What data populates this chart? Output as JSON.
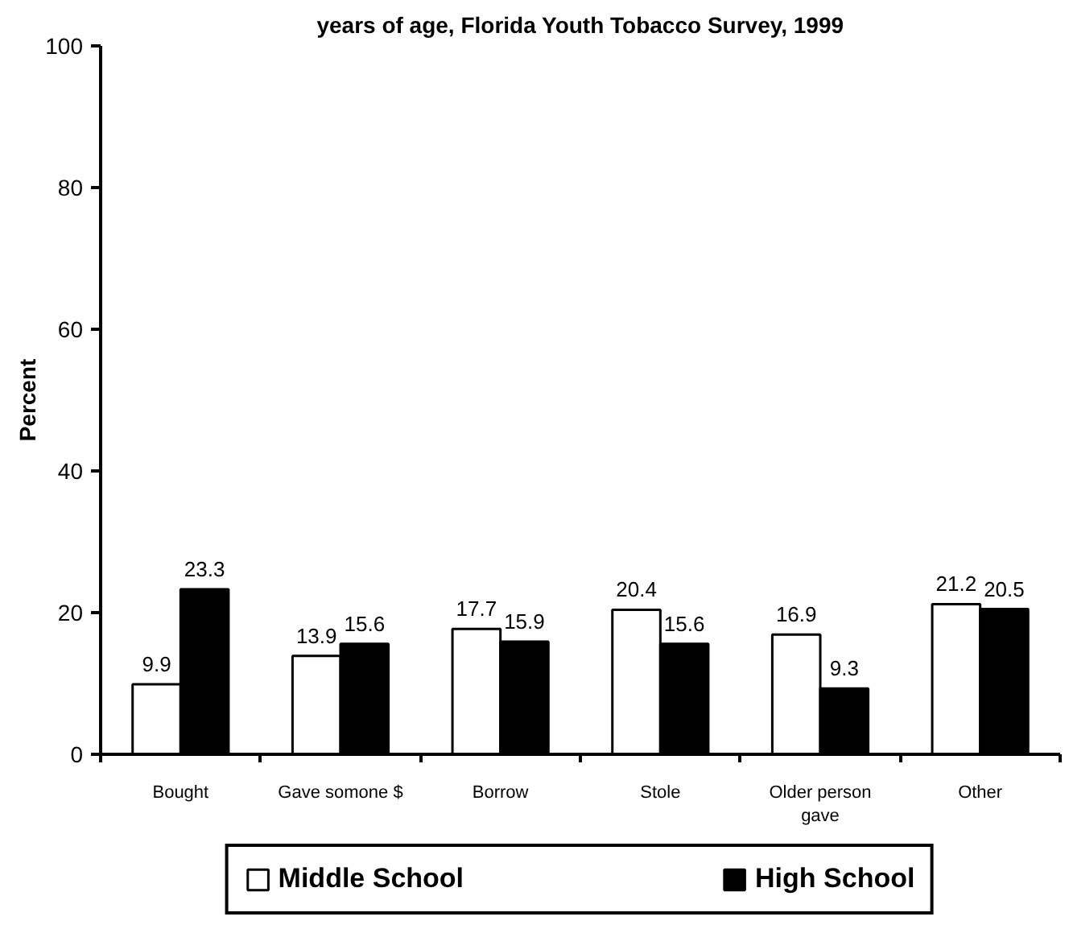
{
  "chart_data": {
    "type": "bar",
    "title": "years of age, Florida Youth Tobacco Survey, 1999",
    "ylabel": "Percent",
    "categories": [
      "Bought",
      "Gave somone $",
      "Borrow",
      "Stole",
      "Older person gave",
      "Other"
    ],
    "series": [
      {
        "name": "Middle School",
        "color": "#ffffff",
        "values": [
          9.9,
          13.9,
          17.7,
          20.4,
          16.9,
          21.2
        ]
      },
      {
        "name": "High School",
        "color": "#000000",
        "values": [
          23.3,
          15.6,
          15.9,
          15.6,
          9.3,
          20.5
        ]
      }
    ],
    "ylim": [
      0,
      100
    ],
    "yticks": [
      0,
      20,
      40,
      60,
      80,
      100
    ],
    "data_labels": true,
    "legend": "bottom"
  }
}
